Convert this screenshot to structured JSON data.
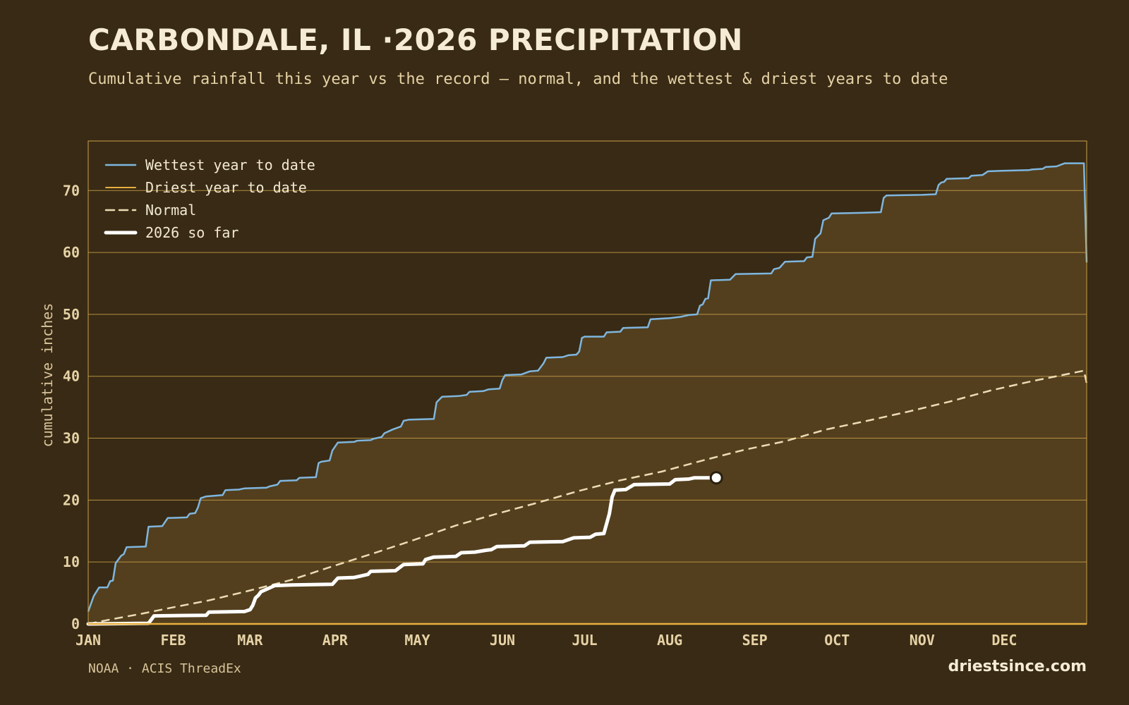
{
  "header": {
    "title": "CARBONDALE, IL ·2026 PRECIPITATION",
    "subtitle": "Cumulative rainfall this year vs the record — normal, and the wettest & driest years to date"
  },
  "footer": {
    "source": "NOAA · ACIS ThreadEx",
    "brand": "driestsince.com"
  },
  "colors": {
    "background": "#382a14",
    "band_fill": "#533f1e",
    "axis_gold": "#c9a04a",
    "wettest": "#7fb6df",
    "driest": "#e8b040",
    "normal": "#ecdcb4",
    "current": "#ffffff"
  },
  "chart_data": {
    "type": "line",
    "xlabel": "",
    "ylabel": "cumulative inches",
    "ylim": [
      0,
      78
    ],
    "xlim": [
      1,
      365
    ],
    "yticks": [
      0,
      10,
      20,
      30,
      40,
      50,
      60,
      70
    ],
    "month_ticks": [
      {
        "label": "JAN",
        "day": 1
      },
      {
        "label": "FEB",
        "day": 32
      },
      {
        "label": "MAR",
        "day": 60
      },
      {
        "label": "APR",
        "day": 91
      },
      {
        "label": "MAY",
        "day": 121
      },
      {
        "label": "JUN",
        "day": 152
      },
      {
        "label": "JUL",
        "day": 182
      },
      {
        "label": "AUG",
        "day": 213
      },
      {
        "label": "SEP",
        "day": 244
      },
      {
        "label": "OCT",
        "day": 274
      },
      {
        "label": "NOV",
        "day": 305
      },
      {
        "label": "DEC",
        "day": 335
      }
    ],
    "grid": true,
    "legend_position": "top-left",
    "series": [
      {
        "name": "Wettest year to date",
        "style": "solid",
        "points": [
          [
            1,
            2
          ],
          [
            3,
            4.5
          ],
          [
            5,
            5.9
          ],
          [
            8,
            5.9
          ],
          [
            9,
            6.9
          ],
          [
            10,
            7
          ],
          [
            11,
            9.8
          ],
          [
            13,
            11
          ],
          [
            14,
            11.3
          ],
          [
            15,
            12.4
          ],
          [
            22,
            12.5
          ],
          [
            23,
            15.7
          ],
          [
            28,
            15.8
          ],
          [
            30,
            17.1
          ],
          [
            37,
            17.2
          ],
          [
            38,
            17.8
          ],
          [
            40,
            17.9
          ],
          [
            41,
            18.8
          ],
          [
            42,
            20.3
          ],
          [
            44,
            20.6
          ],
          [
            50,
            20.8
          ],
          [
            51,
            21.6
          ],
          [
            56,
            21.7
          ],
          [
            58,
            21.9
          ],
          [
            66,
            22
          ],
          [
            67,
            22.2
          ],
          [
            70,
            22.5
          ],
          [
            71,
            23.1
          ],
          [
            77,
            23.2
          ],
          [
            78,
            23.6
          ],
          [
            84,
            23.7
          ],
          [
            85,
            26
          ],
          [
            86,
            26.2
          ],
          [
            89,
            26.4
          ],
          [
            90,
            28
          ],
          [
            92,
            29.3
          ],
          [
            98,
            29.4
          ],
          [
            99,
            29.6
          ],
          [
            104,
            29.7
          ],
          [
            105,
            29.9
          ],
          [
            108,
            30.2
          ],
          [
            109,
            30.8
          ],
          [
            112,
            31.4
          ],
          [
            115,
            31.9
          ],
          [
            116,
            32.8
          ],
          [
            118,
            33
          ],
          [
            127,
            33.1
          ],
          [
            128,
            35.8
          ],
          [
            130,
            36.7
          ],
          [
            136,
            36.8
          ],
          [
            139,
            37
          ],
          [
            140,
            37.5
          ],
          [
            145,
            37.6
          ],
          [
            147,
            37.9
          ],
          [
            151,
            38
          ],
          [
            152,
            39.4
          ],
          [
            153,
            40.2
          ],
          [
            159,
            40.3
          ],
          [
            162,
            40.8
          ],
          [
            165,
            40.9
          ],
          [
            167,
            42.1
          ],
          [
            168,
            43
          ],
          [
            174,
            43.1
          ],
          [
            176,
            43.4
          ],
          [
            179,
            43.5
          ],
          [
            180,
            44
          ],
          [
            181,
            46.2
          ],
          [
            182,
            46.4
          ],
          [
            189,
            46.4
          ],
          [
            190,
            47.1
          ],
          [
            195,
            47.2
          ],
          [
            196,
            47.8
          ],
          [
            205,
            47.9
          ],
          [
            206,
            49.2
          ],
          [
            213,
            49.4
          ],
          [
            217,
            49.6
          ],
          [
            220,
            49.9
          ],
          [
            223,
            50
          ],
          [
            224,
            51.4
          ],
          [
            225,
            51.6
          ],
          [
            226,
            52.5
          ],
          [
            227,
            52.6
          ],
          [
            228,
            55.5
          ],
          [
            235,
            55.6
          ],
          [
            237,
            56.5
          ],
          [
            250,
            56.6
          ],
          [
            251,
            57.3
          ],
          [
            253,
            57.5
          ],
          [
            255,
            58.5
          ],
          [
            262,
            58.6
          ],
          [
            263,
            59.2
          ],
          [
            265,
            59.3
          ],
          [
            266,
            62.2
          ],
          [
            268,
            63.1
          ],
          [
            269,
            65.2
          ],
          [
            271,
            65.6
          ],
          [
            272,
            66.3
          ],
          [
            283,
            66.4
          ],
          [
            290,
            66.5
          ],
          [
            291,
            68.8
          ],
          [
            292,
            69.2
          ],
          [
            305,
            69.3
          ],
          [
            310,
            69.4
          ],
          [
            311,
            70.9
          ],
          [
            312,
            71.3
          ],
          [
            313,
            71.4
          ],
          [
            314,
            71.9
          ],
          [
            322,
            72
          ],
          [
            323,
            72.4
          ],
          [
            327,
            72.5
          ],
          [
            329,
            73.1
          ],
          [
            334,
            73.2
          ],
          [
            344,
            73.3
          ],
          [
            345,
            73.4
          ],
          [
            349,
            73.5
          ],
          [
            350,
            73.8
          ],
          [
            354,
            73.9
          ],
          [
            357,
            74.4
          ],
          [
            364,
            74.4
          ],
          [
            365,
            58.4
          ]
        ]
      },
      {
        "name": "Driest year to date",
        "style": "solid",
        "points": [
          [
            1,
            0
          ],
          [
            365,
            0
          ]
        ]
      },
      {
        "name": "Normal",
        "style": "dashed",
        "points": [
          [
            1,
            0
          ],
          [
            10,
            0.8
          ],
          [
            20,
            1.6
          ],
          [
            31,
            2.6
          ],
          [
            45,
            3.8
          ],
          [
            59,
            5.3
          ],
          [
            75,
            7.1
          ],
          [
            90,
            9.3
          ],
          [
            105,
            11.4
          ],
          [
            120,
            13.6
          ],
          [
            135,
            15.9
          ],
          [
            150,
            17.8
          ],
          [
            165,
            19.6
          ],
          [
            180,
            21.5
          ],
          [
            195,
            23.2
          ],
          [
            210,
            24.6
          ],
          [
            225,
            26.4
          ],
          [
            240,
            28.1
          ],
          [
            255,
            29.5
          ],
          [
            270,
            31.4
          ],
          [
            285,
            32.8
          ],
          [
            300,
            34.3
          ],
          [
            315,
            35.9
          ],
          [
            330,
            37.7
          ],
          [
            345,
            39.2
          ],
          [
            364,
            40.9
          ],
          [
            365,
            38.9
          ]
        ]
      },
      {
        "name": "2026 so far",
        "style": "bold",
        "points": [
          [
            1,
            0
          ],
          [
            23,
            0.1
          ],
          [
            25,
            1.3
          ],
          [
            44,
            1.4
          ],
          [
            45,
            1.9
          ],
          [
            58,
            2
          ],
          [
            60,
            2.3
          ],
          [
            61,
            3
          ],
          [
            62,
            4.2
          ],
          [
            63,
            4.6
          ],
          [
            64,
            5.2
          ],
          [
            67,
            5.8
          ],
          [
            69,
            6.2
          ],
          [
            75,
            6.3
          ],
          [
            90,
            6.4
          ],
          [
            92,
            7.4
          ],
          [
            98,
            7.5
          ],
          [
            103,
            8
          ],
          [
            104,
            8.5
          ],
          [
            113,
            8.6
          ],
          [
            116,
            9.6
          ],
          [
            123,
            9.7
          ],
          [
            124,
            10.4
          ],
          [
            127,
            10.8
          ],
          [
            135,
            10.9
          ],
          [
            137,
            11.5
          ],
          [
            142,
            11.6
          ],
          [
            146,
            11.9
          ],
          [
            148,
            12
          ],
          [
            150,
            12.5
          ],
          [
            160,
            12.6
          ],
          [
            162,
            13.2
          ],
          [
            174,
            13.3
          ],
          [
            178,
            13.9
          ],
          [
            184,
            14
          ],
          [
            186,
            14.5
          ],
          [
            189,
            14.6
          ],
          [
            191,
            17.8
          ],
          [
            192,
            20.5
          ],
          [
            193,
            21.6
          ],
          [
            197,
            21.7
          ],
          [
            200,
            22.5
          ],
          [
            213,
            22.6
          ],
          [
            215,
            23.3
          ],
          [
            220,
            23.4
          ],
          [
            222,
            23.6
          ],
          [
            230,
            23.6
          ]
        ],
        "latest_value": 23.6
      }
    ]
  }
}
